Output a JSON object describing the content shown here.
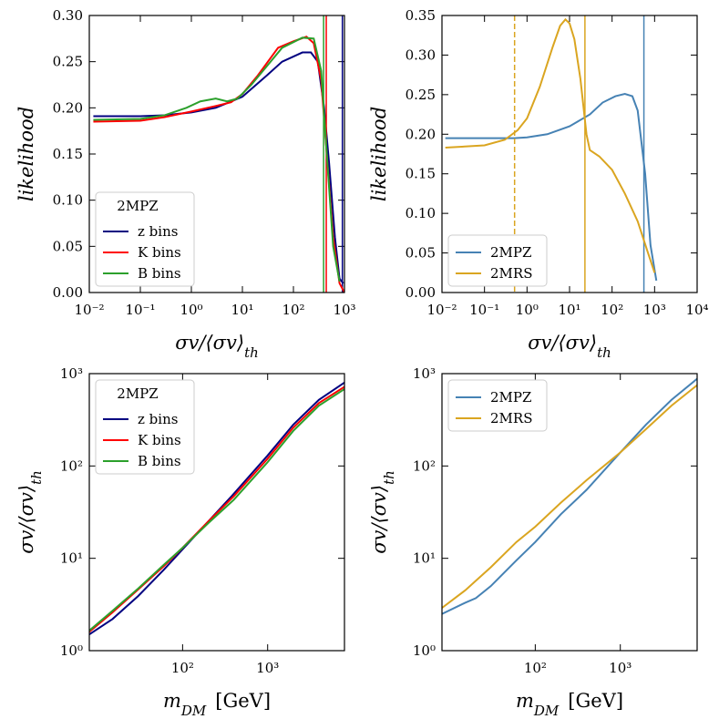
{
  "chart_data": [
    {
      "type": "line",
      "xscale": "log",
      "yscale": "linear",
      "xlabel": {
        "main": "σv/⟨σv⟩",
        "subscript": "th"
      },
      "ylabel": "likelihood",
      "xlim": [
        0.01,
        1000
      ],
      "ylim": [
        0,
        0.3
      ],
      "xticks": [
        {
          "value": 0.01,
          "label": "10⁻²"
        },
        {
          "value": 0.1,
          "label": "10⁻¹"
        },
        {
          "value": 1,
          "label": "10⁰"
        },
        {
          "value": 10,
          "label": "10¹"
        },
        {
          "value": 100,
          "label": "10²"
        },
        {
          "value": 1000,
          "label": "10³"
        }
      ],
      "yticks": [
        {
          "value": 0,
          "label": "0.00"
        },
        0.05,
        {
          "value": 0.1,
          "label": "0.10"
        },
        0.15,
        {
          "value": 0.2,
          "label": "0.20"
        },
        0.25,
        {
          "value": 0.3,
          "label": "0.30"
        }
      ],
      "legend_title": "2MPZ",
      "legend_loc": "lower left",
      "series": [
        {
          "name": "z bins",
          "color": "#000080",
          "x": [
            0.012,
            0.1,
            0.3,
            1,
            3,
            10,
            30,
            60,
            150,
            220,
            300,
            400,
            500,
            650,
            800,
            950
          ],
          "values": [
            0.191,
            0.191,
            0.192,
            0.195,
            0.2,
            0.212,
            0.235,
            0.25,
            0.26,
            0.26,
            0.25,
            0.2,
            0.14,
            0.06,
            0.015,
            0.01
          ],
          "vlines": [
            {
              "x": 910,
              "style": "solid"
            }
          ]
        },
        {
          "name": "K bins",
          "color": "#ff0000",
          "x": [
            0.012,
            0.1,
            0.3,
            1,
            3,
            6,
            10,
            20,
            50,
            100,
            180,
            250,
            350,
            450,
            600,
            800,
            1000
          ],
          "values": [
            0.185,
            0.186,
            0.19,
            0.196,
            0.202,
            0.206,
            0.215,
            0.235,
            0.265,
            0.272,
            0.277,
            0.27,
            0.23,
            0.15,
            0.06,
            0.01,
            0
          ],
          "vlines": [
            {
              "x": 440,
              "style": "solid"
            }
          ]
        },
        {
          "name": "B bins",
          "color": "#2ca02c",
          "x": [
            0.012,
            0.1,
            0.3,
            0.8,
            1.5,
            3,
            5,
            8,
            15,
            30,
            60,
            150,
            250,
            350,
            450,
            600,
            800
          ],
          "values": [
            0.187,
            0.188,
            0.192,
            0.2,
            0.207,
            0.21,
            0.207,
            0.21,
            0.225,
            0.245,
            0.265,
            0.276,
            0.275,
            0.24,
            0.15,
            0.05,
            0.012
          ],
          "vlines": [
            {
              "x": 390,
              "style": "solid"
            }
          ]
        }
      ]
    },
    {
      "type": "line",
      "xscale": "log",
      "yscale": "linear",
      "xlabel": {
        "main": "σv/⟨σv⟩",
        "subscript": "th"
      },
      "ylabel": "likelihood",
      "xlim": [
        0.01,
        10000
      ],
      "ylim": [
        0,
        0.35
      ],
      "xticks": [
        {
          "value": 0.01,
          "label": "10⁻²"
        },
        {
          "value": 0.1,
          "label": "10⁻¹"
        },
        {
          "value": 1,
          "label": "10⁰"
        },
        {
          "value": 10,
          "label": "10¹"
        },
        {
          "value": 100,
          "label": "10²"
        },
        {
          "value": 1000,
          "label": "10³"
        },
        {
          "value": 10000,
          "label": "10⁴"
        }
      ],
      "yticks": [
        {
          "value": 0,
          "label": "0.00"
        },
        0.05,
        {
          "value": 0.1,
          "label": "0.10"
        },
        0.15,
        {
          "value": 0.2,
          "label": "0.20"
        },
        0.25,
        {
          "value": 0.3,
          "label": "0.30"
        },
        0.35
      ],
      "legend_loc": "lower left",
      "series": [
        {
          "name": "2MPZ",
          "color": "#4682b4",
          "x": [
            0.012,
            0.5,
            1,
            3,
            10,
            30,
            60,
            120,
            200,
            300,
            400,
            600,
            800,
            1100
          ],
          "values": [
            0.195,
            0.195,
            0.196,
            0.2,
            0.21,
            0.225,
            0.24,
            0.248,
            0.251,
            0.248,
            0.23,
            0.15,
            0.06,
            0.015
          ],
          "vlines": [
            {
              "x": 560,
              "style": "solid"
            }
          ]
        },
        {
          "name": "2MRS",
          "color": "#daa520",
          "x": [
            0.012,
            0.1,
            0.3,
            0.6,
            1,
            2,
            4,
            6,
            8,
            10,
            13,
            18,
            25,
            30,
            50,
            100,
            200,
            400,
            700,
            1000
          ],
          "values": [
            0.183,
            0.186,
            0.193,
            0.205,
            0.22,
            0.26,
            0.31,
            0.337,
            0.345,
            0.34,
            0.32,
            0.27,
            0.2,
            0.18,
            0.172,
            0.155,
            0.125,
            0.09,
            0.05,
            0.025
          ],
          "vlines": [
            {
              "x": 0.51,
              "style": "dashed"
            },
            {
              "x": 23,
              "style": "solid"
            }
          ]
        }
      ]
    },
    {
      "type": "line",
      "xscale": "log",
      "yscale": "log",
      "xlabel": {
        "main": "m",
        "subscript": "DM",
        "unit": "[GeV]"
      },
      "ylabel": {
        "main": "σv/⟨σv⟩",
        "subscript": "th"
      },
      "xlim": [
        8,
        8000
      ],
      "ylim": [
        1,
        1000
      ],
      "xticks": [
        {
          "value": 100,
          "label": "10²"
        },
        {
          "value": 1000,
          "label": "10³"
        }
      ],
      "yticks": [
        {
          "value": 1,
          "label": "10⁰"
        },
        {
          "value": 10,
          "label": "10¹"
        },
        {
          "value": 100,
          "label": "10²"
        },
        {
          "value": 1000,
          "label": "10³"
        }
      ],
      "legend_title": "2MPZ",
      "legend_loc": "upper left",
      "series": [
        {
          "name": "z bins",
          "color": "#000080",
          "x": [
            8,
            15,
            30,
            60,
            100,
            200,
            400,
            1000,
            2000,
            4000,
            8000
          ],
          "values": [
            1.5,
            2.2,
            3.9,
            7.5,
            12.5,
            25,
            50,
            130,
            280,
            520,
            800
          ]
        },
        {
          "name": "K bins",
          "color": "#ff0000",
          "x": [
            8,
            15,
            30,
            60,
            100,
            200,
            400,
            1000,
            2000,
            4000,
            8000
          ],
          "values": [
            1.6,
            2.6,
            4.6,
            8.2,
            13,
            25,
            47,
            120,
            260,
            480,
            720
          ]
        },
        {
          "name": "B bins",
          "color": "#2ca02c",
          "x": [
            8,
            15,
            30,
            60,
            100,
            200,
            400,
            1000,
            2000,
            4000,
            8000
          ],
          "values": [
            1.65,
            2.7,
            4.7,
            8.5,
            13,
            24,
            43,
            110,
            240,
            450,
            680
          ]
        }
      ]
    },
    {
      "type": "line",
      "xscale": "log",
      "yscale": "log",
      "xlabel": {
        "main": "m",
        "subscript": "DM",
        "unit": "[GeV]"
      },
      "ylabel": {
        "main": "σv/⟨σv⟩",
        "subscript": "th"
      },
      "xlim": [
        8,
        8000
      ],
      "ylim": [
        1,
        1000
      ],
      "xticks": [
        {
          "value": 100,
          "label": "10²"
        },
        {
          "value": 1000,
          "label": "10³"
        }
      ],
      "yticks": [
        {
          "value": 1,
          "label": "10⁰"
        },
        {
          "value": 10,
          "label": "10¹"
        },
        {
          "value": 100,
          "label": "10²"
        },
        {
          "value": 1000,
          "label": "10³"
        }
      ],
      "legend_loc": "upper left",
      "series": [
        {
          "name": "2MPZ",
          "color": "#4682b4",
          "x": [
            8,
            15,
            20,
            30,
            60,
            100,
            200,
            400,
            1000,
            2000,
            4000,
            8000
          ],
          "values": [
            2.5,
            3.3,
            3.7,
            5,
            9.5,
            15,
            30,
            55,
            140,
            280,
            520,
            880
          ]
        },
        {
          "name": "2MRS",
          "color": "#daa520",
          "x": [
            8,
            15,
            30,
            60,
            100,
            200,
            400,
            1000,
            2000,
            4000,
            8000
          ],
          "values": [
            2.9,
            4.5,
            8,
            15,
            22,
            40,
            70,
            140,
            250,
            450,
            750
          ]
        }
      ]
    }
  ]
}
